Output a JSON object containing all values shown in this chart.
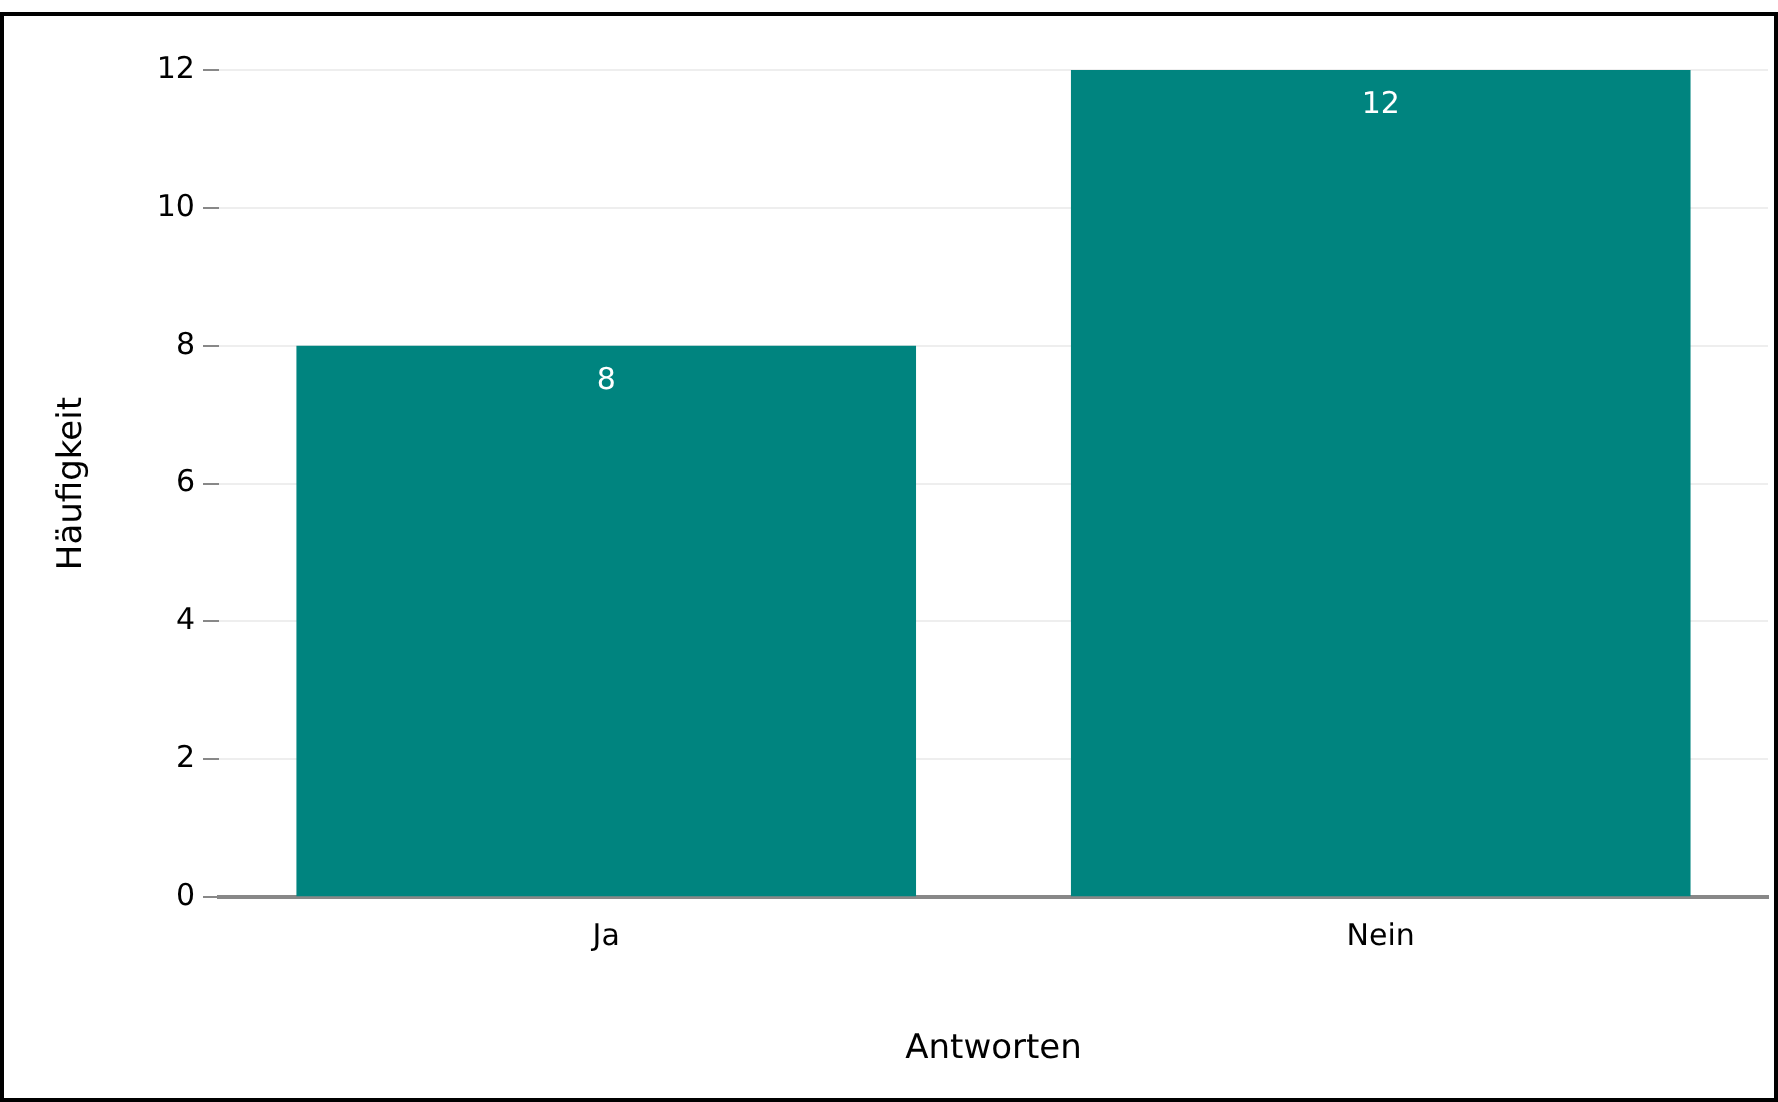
{
  "chart_data": {
    "type": "bar",
    "xlabel": "Antworten",
    "ylabel": "Häufigkeit",
    "categories": [
      "Ja",
      "Nein"
    ],
    "values": [
      8,
      12
    ],
    "color": "#00847f",
    "ylim": [
      0,
      12
    ],
    "yticks": [
      0,
      2,
      4,
      6,
      8,
      10,
      12
    ],
    "grid": "y",
    "data_labels": true,
    "legend": false
  }
}
